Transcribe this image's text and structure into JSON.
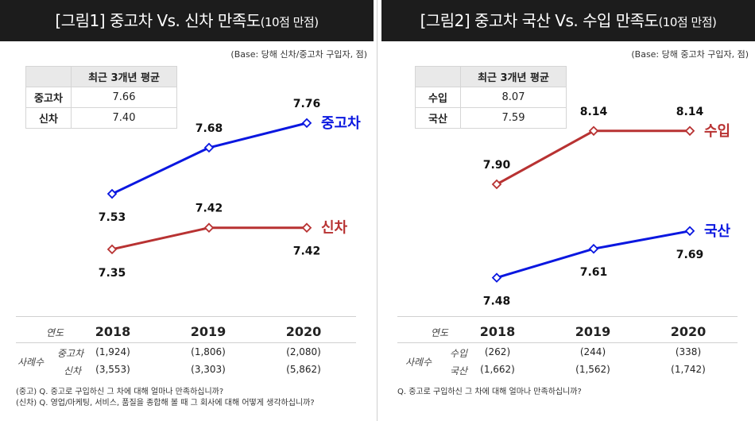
{
  "panels": [
    {
      "title": "[그림1] 중고차 Vs. 신차 만족도",
      "title_suffix": "(10점 만점)",
      "base_note": "(Base: 당해 신차/중고차 구입자, 점)",
      "avg_table": {
        "header": "최근 3개년 평균",
        "rows": [
          {
            "label": "중고차",
            "value": "7.66"
          },
          {
            "label": "신차",
            "value": "7.40"
          }
        ]
      },
      "year_label": "연도",
      "sample_label": "사례수",
      "sample_rows": [
        {
          "label": "중고차",
          "values": [
            "(1,924)",
            "(1,806)",
            "(2,080)"
          ]
        },
        {
          "label": "신차",
          "values": [
            "(3,553)",
            "(3,303)",
            "(5,862)"
          ]
        }
      ],
      "notes": [
        "(중고) Q. 중고로 구입하신 그 차에 대해 얼마나 만족하십니까?",
        "(신차) Q. 영업/마케팅, 서비스, 품질을 종합해 볼 때 그 회사에 대해 어떻게 생각하십니까?"
      ]
    },
    {
      "title": "[그림2] 중고차 국산 Vs. 수입 만족도",
      "title_suffix": "(10점 만점)",
      "base_note": "(Base: 당해 중고차 구입자, 점)",
      "avg_table": {
        "header": "최근 3개년 평균",
        "rows": [
          {
            "label": "수입",
            "value": "8.07"
          },
          {
            "label": "국산",
            "value": "7.59"
          }
        ]
      },
      "year_label": "연도",
      "sample_label": "사례수",
      "sample_rows": [
        {
          "label": "수입",
          "values": [
            "(262)",
            "(244)",
            "(338)"
          ]
        },
        {
          "label": "국산",
          "values": [
            "(1,662)",
            "(1,562)",
            "(1,742)"
          ]
        }
      ],
      "notes": [
        "Q. 중고로 구입하신 그 차에 대해 얼마나 만족하십니까?"
      ]
    }
  ],
  "chart_data": [
    {
      "type": "line",
      "title": "[그림1] 중고차 Vs. 신차 만족도(10점 만점)",
      "x": [
        "2018",
        "2019",
        "2020"
      ],
      "ylim": [
        7.2,
        7.85
      ],
      "grid": false,
      "series": [
        {
          "name": "중고차",
          "color": "#0a17e0",
          "values": [
            7.53,
            7.68,
            7.76
          ],
          "labels": [
            "7.53",
            "7.68",
            "7.76"
          ]
        },
        {
          "name": "신차",
          "color": "#b83232",
          "values": [
            7.35,
            7.42,
            7.42
          ],
          "labels": [
            "7.35",
            "7.42",
            "7.42"
          ]
        }
      ]
    },
    {
      "type": "line",
      "title": "[그림2] 중고차 국산 Vs. 수입 만족도(10점 만점)",
      "x": [
        "2018",
        "2019",
        "2020"
      ],
      "ylim": [
        7.3,
        8.3
      ],
      "grid": false,
      "series": [
        {
          "name": "수입",
          "color": "#b83232",
          "values": [
            7.9,
            8.14,
            8.14
          ],
          "labels": [
            "7.90",
            "8.14",
            "8.14"
          ]
        },
        {
          "name": "국산",
          "color": "#0a17e0",
          "values": [
            7.48,
            7.61,
            7.69
          ],
          "labels": [
            "7.48",
            "7.61",
            "7.69"
          ]
        }
      ]
    }
  ]
}
